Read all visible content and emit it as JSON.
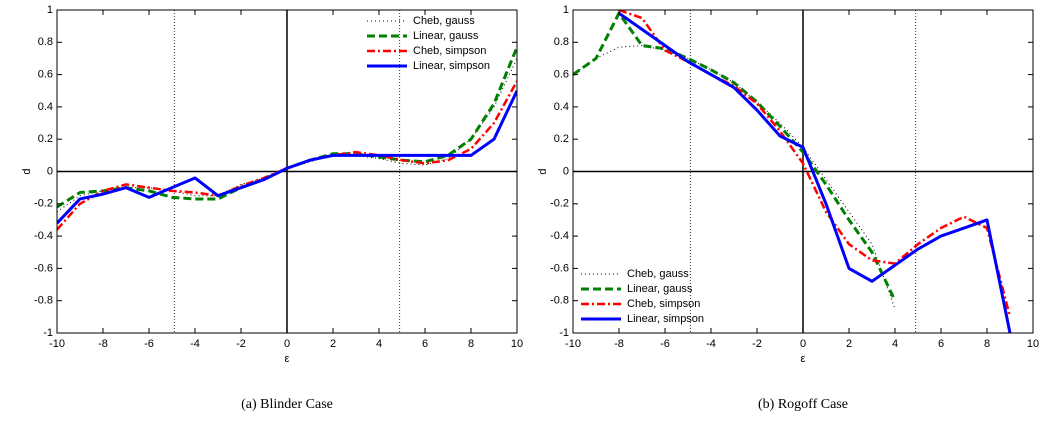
{
  "chart_data": [
    {
      "type": "line",
      "caption": "(a) Blinder Case",
      "xlabel": "ε",
      "ylabel": "d",
      "x": [
        -10,
        -9,
        -8,
        -7,
        -6,
        -5,
        -4,
        -3,
        -2,
        -1,
        0,
        1,
        2,
        3,
        4,
        5,
        6,
        7,
        8,
        9,
        10
      ],
      "series": [
        {
          "name": "Cheb, gauss",
          "color": "#000000",
          "style": "dotted",
          "values": [
            -0.25,
            -0.15,
            -0.12,
            -0.1,
            -0.1,
            -0.12,
            -0.15,
            -0.15,
            -0.08,
            -0.04,
            0.02,
            0.06,
            0.1,
            0.1,
            0.08,
            0.05,
            0.04,
            0.08,
            0.2,
            0.4,
            0.7
          ]
        },
        {
          "name": "Linear, gauss",
          "color": "#008000",
          "style": "dashed",
          "values": [
            -0.22,
            -0.13,
            -0.12,
            -0.1,
            -0.12,
            -0.16,
            -0.17,
            -0.17,
            -0.1,
            -0.05,
            0.02,
            0.07,
            0.11,
            0.11,
            0.09,
            0.07,
            0.06,
            0.1,
            0.2,
            0.42,
            0.77
          ]
        },
        {
          "name": "Cheb, simpson",
          "color": "#ff0000",
          "style": "dashdot",
          "values": [
            -0.36,
            -0.2,
            -0.12,
            -0.08,
            -0.1,
            -0.12,
            -0.13,
            -0.15,
            -0.09,
            -0.04,
            0.02,
            0.07,
            0.1,
            0.12,
            0.1,
            0.07,
            0.05,
            0.07,
            0.14,
            0.3,
            0.56
          ]
        },
        {
          "name": "Linear, simpson",
          "color": "#0000ff",
          "style": "solid",
          "values": [
            -0.32,
            -0.17,
            -0.14,
            -0.1,
            -0.16,
            -0.1,
            -0.04,
            -0.15,
            -0.1,
            -0.05,
            0.02,
            0.07,
            0.1,
            0.1,
            0.1,
            0.1,
            0.1,
            0.1,
            0.1,
            0.2,
            0.5
          ]
        }
      ],
      "reference_lines": [
        -4.9,
        4.9
      ],
      "xlim": [
        -10,
        10
      ],
      "xticks": [
        -10,
        -8,
        -6,
        -4,
        -2,
        0,
        2,
        4,
        6,
        8,
        10
      ],
      "ylim": [
        -1,
        1
      ],
      "yticks": [
        -1,
        -0.8,
        -0.6,
        -0.4,
        -0.2,
        0,
        0.2,
        0.4,
        0.6,
        0.8,
        1
      ],
      "legend": "upper right"
    },
    {
      "type": "line",
      "caption": "(b) Rogoff Case",
      "xlabel": "ε",
      "ylabel": "d",
      "x": [
        -10,
        -9,
        -8,
        -7,
        -6,
        -5,
        -4,
        -3,
        -2,
        -1,
        0,
        1,
        2,
        3,
        4,
        5,
        6,
        7,
        8,
        9,
        10
      ],
      "series": [
        {
          "name": "Cheb, gauss",
          "color": "#000000",
          "style": "dotted",
          "values": [
            0.6,
            0.7,
            0.77,
            0.78,
            0.75,
            0.7,
            0.63,
            0.55,
            0.43,
            0.3,
            0.15,
            -0.05,
            -0.25,
            -0.45,
            -0.85,
            null,
            null,
            null,
            null,
            null,
            null
          ]
        },
        {
          "name": "Linear, gauss",
          "color": "#008000",
          "style": "dashed",
          "values": [
            0.6,
            0.7,
            0.98,
            0.78,
            0.76,
            0.7,
            0.63,
            0.55,
            0.43,
            0.28,
            0.12,
            -0.08,
            -0.3,
            -0.5,
            -0.8,
            null,
            null,
            null,
            null,
            null,
            null
          ]
        },
        {
          "name": "Cheb, simpson",
          "color": "#ff0000",
          "style": "dashdot",
          "values": [
            null,
            null,
            1,
            0.95,
            0.75,
            0.68,
            0.6,
            0.53,
            0.42,
            0.25,
            0.05,
            -0.25,
            -0.45,
            -0.55,
            -0.57,
            -0.45,
            -0.35,
            -0.28,
            -0.35,
            -0.9,
            null
          ]
        },
        {
          "name": "Linear, simpson",
          "color": "#0000ff",
          "style": "solid",
          "values": [
            null,
            null,
            0.98,
            0.88,
            0.78,
            0.68,
            0.6,
            0.52,
            0.38,
            0.22,
            0.15,
            -0.2,
            -0.6,
            -0.68,
            -0.58,
            -0.48,
            -0.4,
            -0.35,
            -0.3,
            -1,
            null
          ]
        }
      ],
      "reference_lines": [
        -4.9,
        4.9
      ],
      "xlim": [
        -10,
        10
      ],
      "xticks": [
        -10,
        -8,
        -6,
        -4,
        -2,
        0,
        2,
        4,
        6,
        8,
        10
      ],
      "ylim": [
        -1,
        1
      ],
      "yticks": [
        -1,
        -0.8,
        -0.6,
        -0.4,
        -0.2,
        0,
        0.2,
        0.4,
        0.6,
        0.8,
        1
      ],
      "legend": "lower left"
    }
  ]
}
